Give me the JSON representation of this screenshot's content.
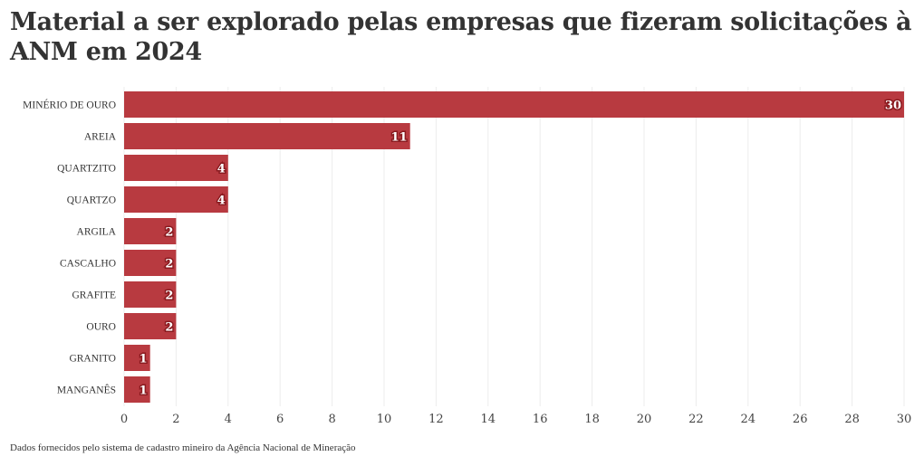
{
  "chart_data": {
    "type": "bar",
    "orientation": "horizontal",
    "title": "Material a ser explorado pelas empresas que fizeram solicitações à ANM em 2024",
    "source": "Dados fornecidos pelo sistema de cadastro mineiro da Agência Nacional de Mineração",
    "categories": [
      "MINÉRIO DE OURO",
      "AREIA",
      "QUARTZITO",
      "QUARTZO",
      "ARGILA",
      "CASCALHO",
      "GRAFITE",
      "OURO",
      "GRANITO",
      "MANGANÊS"
    ],
    "values": [
      30,
      11,
      4,
      4,
      2,
      2,
      2,
      2,
      1,
      1
    ],
    "xlim": [
      0,
      30
    ],
    "xticks": [
      0,
      2,
      4,
      6,
      8,
      10,
      12,
      14,
      16,
      18,
      20,
      22,
      24,
      26,
      28,
      30
    ],
    "grid": true,
    "data_labels": true,
    "bar_color": "#b83a40"
  }
}
